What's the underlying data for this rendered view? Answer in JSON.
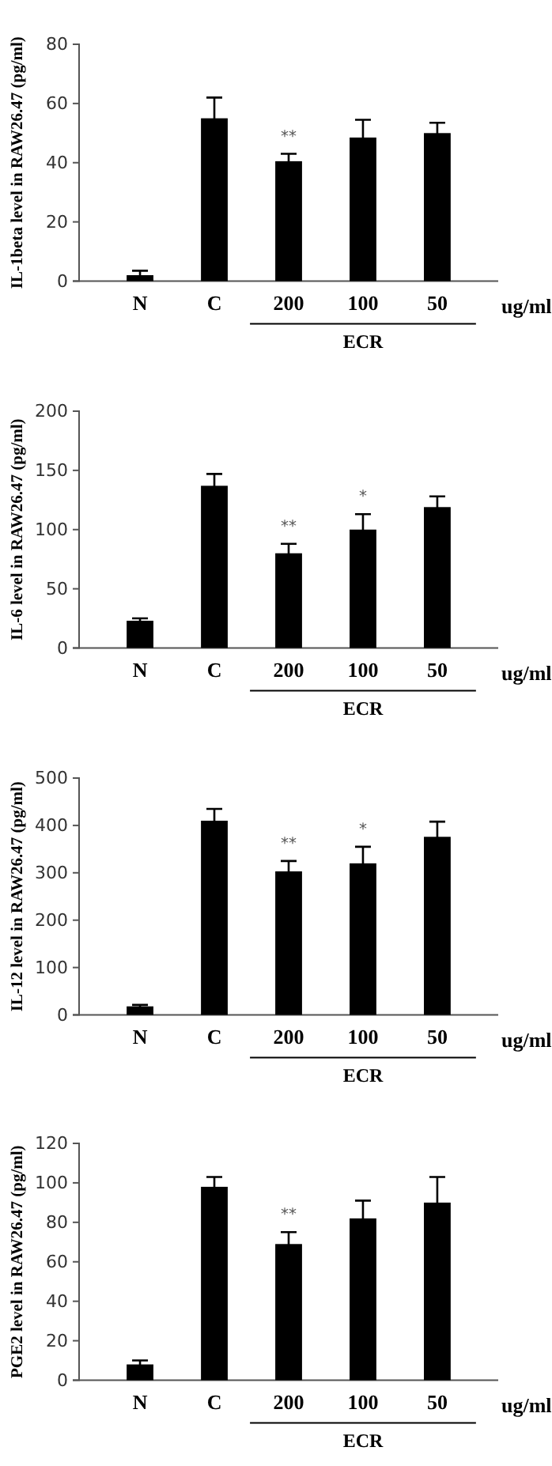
{
  "chart_data": [
    {
      "type": "bar",
      "ylabel": "IL-1beta level in RAW26.47 (pg/ml)",
      "categories": [
        "N",
        "C",
        "200",
        "100",
        "50"
      ],
      "values": [
        2,
        55,
        40.5,
        48.5,
        50
      ],
      "errors": [
        [
          2,
          3.5
        ],
        7,
        2.5,
        6,
        3.5
      ],
      "color": "#000000",
      "ylim": [
        0,
        80
      ],
      "yticks": [
        0,
        20,
        40,
        60,
        80
      ],
      "annotations": [
        "**",
        "ug/ml",
        "ECR"
      ]
    },
    {
      "type": "bar",
      "ylabel": "IL-6 level in RAW26.47 (pg/ml)",
      "categories": [
        "N",
        "C",
        "200",
        "100",
        "50"
      ],
      "values": [
        23,
        137,
        80,
        100,
        119
      ],
      "errors": [
        2,
        10,
        8,
        13,
        9
      ],
      "color": "#000000",
      "ylim": [
        0,
        200
      ],
      "yticks": [
        0,
        50,
        100,
        150,
        200
      ],
      "annotations": [
        "**",
        "*",
        "ug/ml",
        "ECR"
      ]
    },
    {
      "type": "bar",
      "ylabel": "IL-12 level in RAW26.47 (pg/ml)",
      "categories": [
        "N",
        "C",
        "200",
        "100",
        "50"
      ],
      "values": [
        18,
        410,
        303,
        320,
        376
      ],
      "errors": [
        3,
        25,
        22,
        35,
        32
      ],
      "color": "#000000",
      "ylim": [
        0,
        500
      ],
      "yticks": [
        0,
        100,
        200,
        300,
        400,
        500
      ],
      "annotations": [
        "**",
        "*",
        "ug/ml",
        "ECR"
      ]
    },
    {
      "type": "bar",
      "ylabel": "PGE2 level in RAW26.47 (pg/ml)",
      "categories": [
        "N",
        "C",
        "200",
        "100",
        "50"
      ],
      "values": [
        8,
        98,
        69,
        82,
        90
      ],
      "errors": [
        2,
        5,
        6,
        9,
        13
      ],
      "color": "#000000",
      "ylim": [
        0,
        120
      ],
      "yticks": [
        0,
        20,
        40,
        60,
        80,
        100,
        120
      ],
      "annotations": [
        "**",
        "ug/ml",
        "ECR"
      ]
    }
  ]
}
